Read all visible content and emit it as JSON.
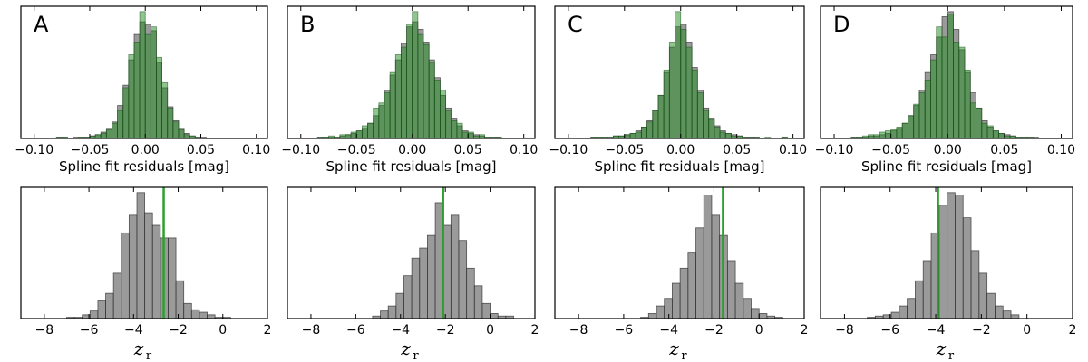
{
  "chart_data": [
    {
      "type": "bar",
      "panel": "A",
      "xlabel": "Spline fit residuals [mag]",
      "xlim": [
        -0.112,
        0.11
      ],
      "xticks": [
        -0.1,
        -0.05,
        0.0,
        0.05,
        0.1
      ],
      "xtick_labels": [
        "−0.10",
        "−0.05",
        "0.00",
        "0.05",
        "0.10"
      ],
      "bin_start": -0.1,
      "bin_width": 0.005,
      "series": [
        {
          "name": "gray",
          "color": "#646464",
          "values": [
            0,
            0,
            0,
            0,
            1,
            1,
            0,
            1,
            1,
            1,
            2,
            3,
            5,
            8,
            13,
            26,
            42,
            62,
            82,
            92,
            90,
            85,
            60,
            40,
            25,
            14,
            8,
            4,
            2,
            1,
            1,
            0,
            0,
            0,
            0,
            0,
            0,
            0,
            0,
            0
          ]
        },
        {
          "name": "green",
          "color": "#228b22",
          "values": [
            0,
            0,
            0,
            0,
            1,
            1,
            0,
            0,
            1,
            1,
            2,
            3,
            4,
            7,
            12,
            22,
            40,
            66,
            76,
            100,
            82,
            88,
            64,
            44,
            24,
            13,
            7,
            3,
            2,
            1,
            0,
            0,
            0,
            0,
            0,
            0,
            0,
            0,
            0,
            0
          ]
        }
      ]
    },
    {
      "type": "bar",
      "panel": "B",
      "xlabel": "Spline fit residuals [mag]",
      "xlim": [
        -0.112,
        0.11
      ],
      "xticks": [
        -0.1,
        -0.05,
        0.0,
        0.05,
        0.1
      ],
      "xtick_labels": [
        "−0.10",
        "−0.05",
        "0.00",
        "0.05",
        "0.10"
      ],
      "bin_start": -0.1,
      "bin_width": 0.005,
      "series": [
        {
          "name": "gray",
          "color": "#646464",
          "values": [
            0,
            0,
            0,
            1,
            1,
            1,
            1,
            2,
            3,
            4,
            6,
            8,
            12,
            18,
            26,
            38,
            50,
            62,
            75,
            88,
            92,
            86,
            76,
            62,
            48,
            34,
            24,
            16,
            10,
            6,
            4,
            3,
            2,
            1,
            1,
            1,
            0,
            0,
            0,
            0
          ]
        },
        {
          "name": "green",
          "color": "#228b22",
          "values": [
            0,
            0,
            0,
            1,
            1,
            2,
            1,
            3,
            3,
            5,
            6,
            10,
            12,
            24,
            28,
            36,
            52,
            66,
            72,
            90,
            100,
            82,
            74,
            60,
            46,
            38,
            22,
            14,
            12,
            5,
            5,
            2,
            3,
            1,
            1,
            1,
            0,
            0,
            0,
            0
          ]
        }
      ]
    },
    {
      "type": "bar",
      "panel": "C",
      "xlabel": "Spline fit residuals [mag]",
      "xlim": [
        -0.112,
        0.11
      ],
      "xticks": [
        -0.1,
        -0.05,
        0.0,
        0.05,
        0.1
      ],
      "xtick_labels": [
        "−0.10",
        "−0.05",
        "0.00",
        "0.05",
        "0.10"
      ],
      "bin_start": -0.1,
      "bin_width": 0.005,
      "series": [
        {
          "name": "gray",
          "color": "#646464",
          "values": [
            0,
            0,
            0,
            0,
            1,
            1,
            1,
            1,
            2,
            2,
            3,
            4,
            6,
            9,
            14,
            22,
            34,
            52,
            72,
            88,
            90,
            76,
            56,
            38,
            24,
            16,
            10,
            6,
            4,
            3,
            2,
            1,
            1,
            1,
            0,
            0,
            0,
            0,
            1,
            0
          ]
        },
        {
          "name": "green",
          "color": "#228b22",
          "values": [
            0,
            0,
            0,
            0,
            1,
            1,
            1,
            1,
            2,
            2,
            3,
            4,
            5,
            9,
            13,
            22,
            34,
            54,
            76,
            100,
            86,
            72,
            54,
            36,
            22,
            15,
            9,
            5,
            4,
            2,
            2,
            1,
            1,
            1,
            0,
            1,
            0,
            0,
            1,
            0
          ]
        }
      ]
    },
    {
      "type": "bar",
      "panel": "D",
      "xlabel": "Spline fit residuals [mag]",
      "xlim": [
        -0.112,
        0.11
      ],
      "xticks": [
        -0.1,
        -0.05,
        0.0,
        0.05,
        0.1
      ],
      "xtick_labels": [
        "−0.10",
        "−0.05",
        "0.00",
        "0.05",
        "0.10"
      ],
      "bin_start": -0.1,
      "bin_width": 0.005,
      "series": [
        {
          "name": "gray",
          "color": "#646464",
          "values": [
            0,
            0,
            0,
            1,
            1,
            1,
            2,
            2,
            3,
            4,
            6,
            8,
            12,
            18,
            26,
            38,
            52,
            66,
            80,
            96,
            100,
            86,
            70,
            52,
            36,
            24,
            14,
            9,
            6,
            4,
            3,
            2,
            1,
            1,
            1,
            1,
            0,
            0,
            0,
            0
          ]
        },
        {
          "name": "green",
          "color": "#228b22",
          "values": [
            0,
            0,
            0,
            1,
            1,
            2,
            3,
            3,
            5,
            6,
            7,
            9,
            12,
            18,
            27,
            36,
            46,
            62,
            88,
            80,
            98,
            76,
            72,
            54,
            28,
            24,
            12,
            10,
            6,
            4,
            2,
            2,
            1,
            1,
            1,
            0,
            0,
            0,
            0,
            0
          ]
        }
      ]
    },
    {
      "type": "bar",
      "panel": "A-bottom",
      "xlabel": "z_r",
      "xlim": [
        -9.05,
        2
      ],
      "xticks": [
        -8,
        -6,
        -4,
        -2,
        0,
        2
      ],
      "xtick_labels": [
        "−8",
        "−6",
        "−4",
        "−2",
        "0",
        "2"
      ],
      "bin_start": -7.35,
      "bin_width": 0.35,
      "values": [
        0,
        1,
        1,
        3,
        6,
        14,
        20,
        36,
        68,
        82,
        100,
        84,
        74,
        64,
        64,
        30,
        12,
        7,
        5,
        3,
        1,
        1,
        0,
        0,
        0
      ],
      "vline": -2.65
    },
    {
      "type": "bar",
      "panel": "B-bottom",
      "xlabel": "z_r",
      "xlim": [
        -9.05,
        2
      ],
      "xticks": [
        -8,
        -6,
        -4,
        -2,
        0,
        2
      ],
      "xtick_labels": [
        "−8",
        "−6",
        "−4",
        "−2",
        "0",
        "2"
      ],
      "bin_start": -7.35,
      "bin_width": 0.35,
      "values": [
        0,
        0,
        0,
        0,
        0,
        0,
        2,
        6,
        10,
        20,
        34,
        48,
        56,
        66,
        92,
        74,
        82,
        62,
        40,
        26,
        12,
        4,
        2,
        2,
        0
      ],
      "vline": -2.1
    },
    {
      "type": "bar",
      "panel": "C-bottom",
      "xlabel": "z_r",
      "xlim": [
        -9.05,
        2
      ],
      "xticks": [
        -8,
        -6,
        -4,
        -2,
        0,
        2
      ],
      "xtick_labels": [
        "−8",
        "−6",
        "−4",
        "−2",
        "0",
        "2"
      ],
      "bin_start": -7.35,
      "bin_width": 0.35,
      "values": [
        0,
        0,
        0,
        0,
        0,
        0,
        1,
        4,
        10,
        16,
        28,
        40,
        52,
        72,
        98,
        82,
        66,
        46,
        28,
        16,
        8,
        4,
        2,
        1,
        0
      ],
      "vline": -1.6
    },
    {
      "type": "bar",
      "panel": "D-bottom",
      "xlabel": "z_r",
      "xlim": [
        -9.05,
        2
      ],
      "xticks": [
        -8,
        -6,
        -4,
        -2,
        0,
        2
      ],
      "xtick_labels": [
        "−8",
        "−6",
        "−4",
        "−2",
        "0",
        "2"
      ],
      "bin_start": -7.35,
      "bin_width": 0.35,
      "values": [
        0,
        1,
        2,
        3,
        5,
        10,
        16,
        30,
        46,
        68,
        90,
        100,
        98,
        80,
        54,
        36,
        20,
        10,
        6,
        3,
        0,
        0,
        0,
        0,
        0
      ],
      "vline": -3.9
    }
  ],
  "panel_letters": [
    "A",
    "B",
    "C",
    "D"
  ],
  "z_symbol": "z",
  "z_subscript": "r",
  "colors": {
    "vline": "#2ca02c",
    "edge": "#404040"
  }
}
